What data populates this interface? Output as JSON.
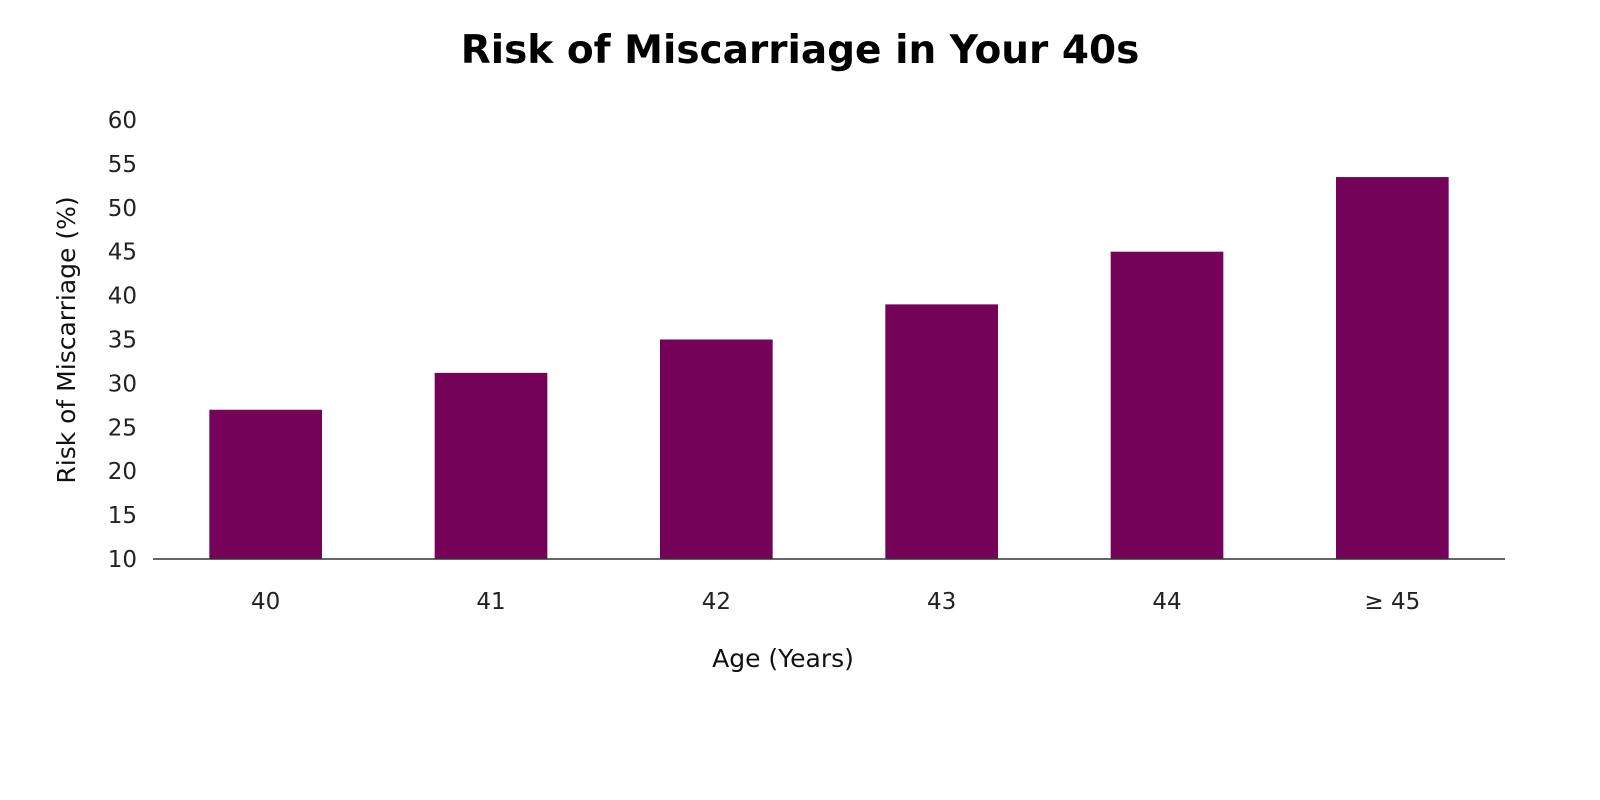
{
  "chart_data": {
    "type": "bar",
    "title": "Risk of Miscarriage in Your 40s",
    "xlabel": "Age (Years)",
    "ylabel": "Risk of Miscarriage (%)",
    "categories": [
      "40",
      "41",
      "42",
      "43",
      "44",
      "≥ 45"
    ],
    "values": [
      27,
      31.2,
      35,
      39,
      45,
      53.5
    ],
    "ylim": [
      10,
      60
    ],
    "yticks": [
      10,
      15,
      20,
      25,
      30,
      35,
      40,
      45,
      50,
      55,
      60
    ],
    "bar_color": "#750259",
    "grid": false,
    "legend": "none"
  }
}
